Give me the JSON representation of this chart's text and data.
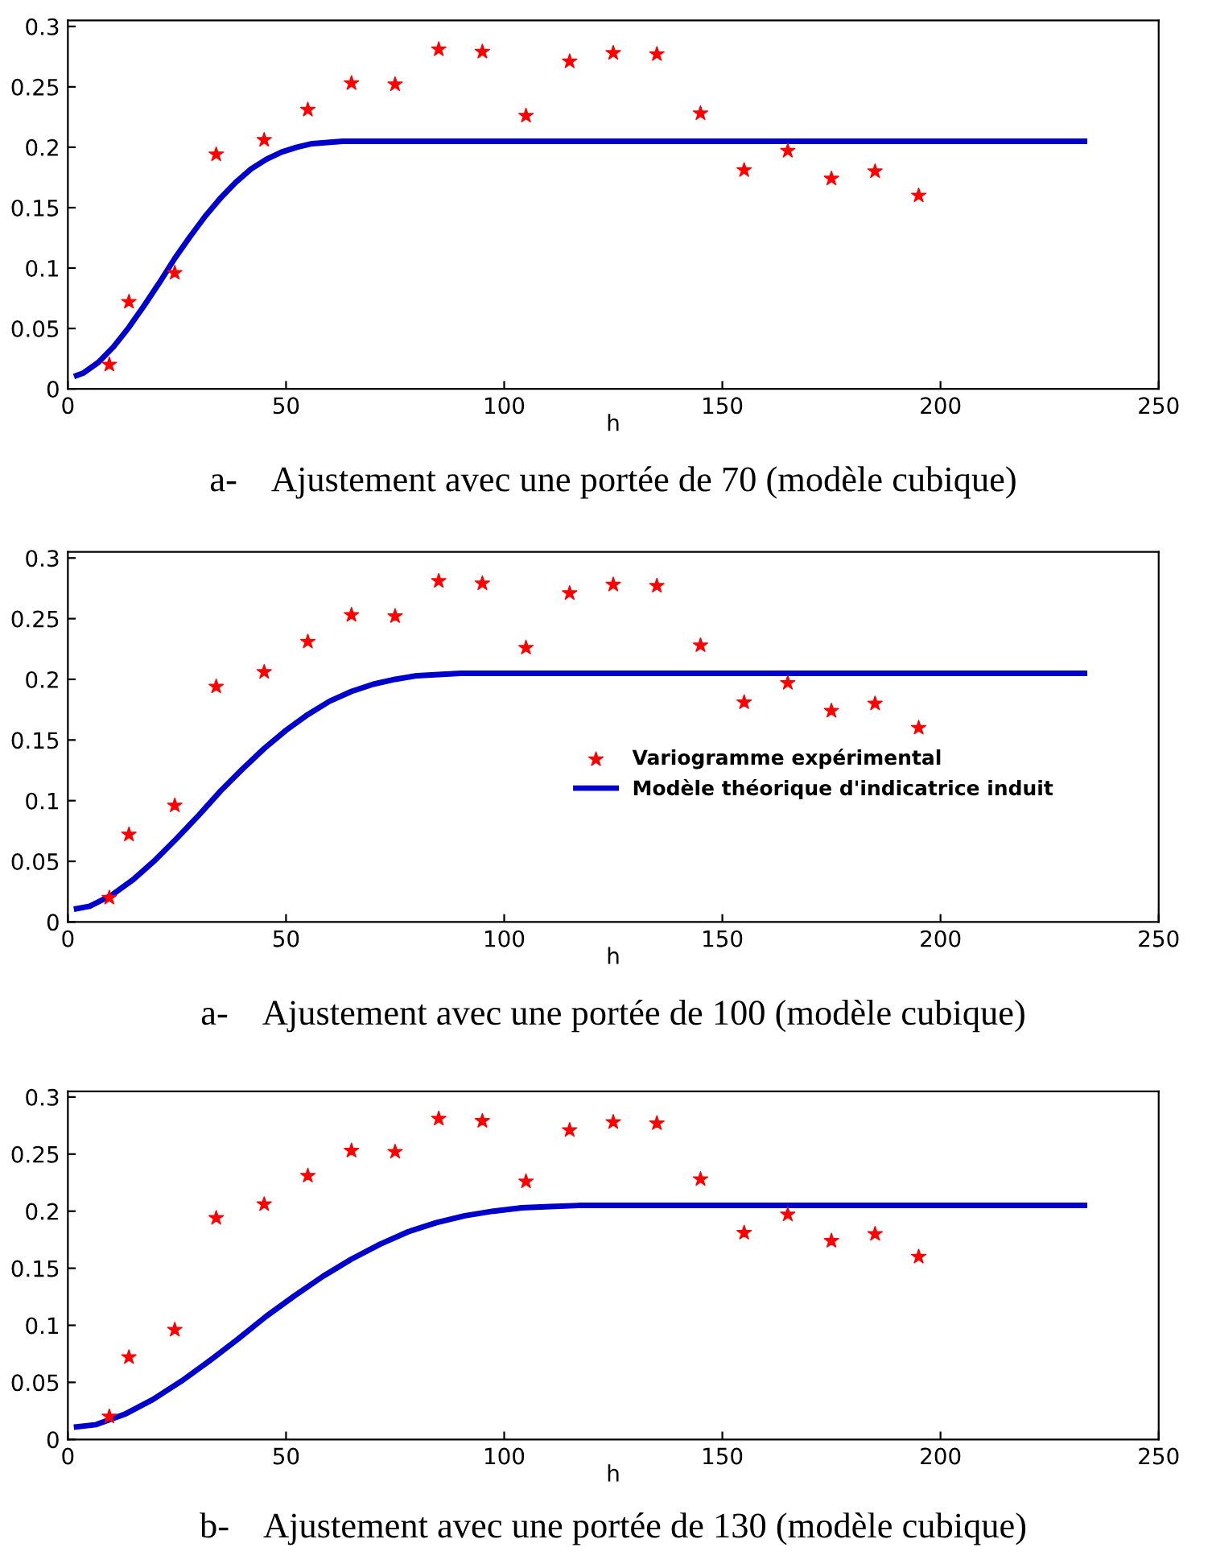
{
  "chart_data": [
    {
      "type": "scatter",
      "xlabel": "h",
      "xlim": [
        0,
        250
      ],
      "ylim": [
        0,
        0.305
      ],
      "xticks": [
        0,
        50,
        100,
        150,
        200,
        250
      ],
      "yticks": [
        0,
        0.05,
        0.1,
        0.15,
        0.2,
        0.25,
        0.3
      ],
      "grid": false,
      "legend": false,
      "annotations": [
        "a-    Ajustement avec une portée de 70 (modèle cubique)"
      ],
      "series": [
        {
          "color": "#ff0000",
          "marker": "star",
          "x": [
            9.5,
            14,
            24.5,
            34,
            45,
            55,
            65,
            75,
            85,
            95,
            105,
            115,
            125,
            135,
            145,
            155,
            165,
            175,
            185,
            195
          ],
          "values": [
            0.02,
            0.072,
            0.096,
            0.194,
            0.206,
            0.231,
            0.253,
            0.252,
            0.281,
            0.279,
            0.226,
            0.271,
            0.278,
            0.277,
            0.228,
            0.181,
            0.197,
            0.174,
            0.18,
            0.16
          ]
        },
        {
          "type": "line",
          "color": "#0000cc",
          "line_style": "solid",
          "x": [
            2,
            3.5,
            7,
            10.5,
            14,
            17.5,
            21,
            24.5,
            28,
            31.5,
            35,
            38.5,
            42,
            45.5,
            49,
            52.5,
            56,
            59.5,
            63,
            70,
            233
          ],
          "values": [
            0.011,
            0.013,
            0.022,
            0.035,
            0.051,
            0.069,
            0.088,
            0.108,
            0.126,
            0.143,
            0.158,
            0.171,
            0.182,
            0.19,
            0.196,
            0.2,
            0.203,
            0.204,
            0.205,
            0.205,
            0.205
          ]
        }
      ]
    },
    {
      "type": "scatter",
      "xlabel": "h",
      "xlim": [
        0,
        250
      ],
      "ylim": [
        0,
        0.305
      ],
      "xticks": [
        0,
        50,
        100,
        150,
        200,
        250
      ],
      "yticks": [
        0,
        0.05,
        0.1,
        0.15,
        0.2,
        0.25,
        0.3
      ],
      "grid": false,
      "legend": "right",
      "annotations": [
        "a-    Ajustement avec une portée de 100 (modèle cubique)"
      ],
      "series": [
        {
          "name": "Variogramme expérimental",
          "color": "#ff0000",
          "marker": "star",
          "x": [
            9.5,
            14,
            24.5,
            34,
            45,
            55,
            65,
            75,
            85,
            95,
            105,
            115,
            125,
            135,
            145,
            155,
            165,
            175,
            185,
            195
          ],
          "values": [
            0.02,
            0.072,
            0.096,
            0.194,
            0.206,
            0.231,
            0.253,
            0.252,
            0.281,
            0.279,
            0.226,
            0.271,
            0.278,
            0.277,
            0.228,
            0.181,
            0.197,
            0.174,
            0.18,
            0.16
          ]
        },
        {
          "type": "line",
          "name": "Modèle théorique d'indicatrice induit",
          "color": "#0000cc",
          "line_style": "solid",
          "x": [
            2,
            5,
            10,
            15,
            20,
            25,
            30,
            35,
            40,
            45,
            50,
            55,
            60,
            65,
            70,
            75,
            80,
            85,
            90,
            100,
            233
          ],
          "values": [
            0.011,
            0.013,
            0.022,
            0.035,
            0.051,
            0.069,
            0.088,
            0.108,
            0.126,
            0.143,
            0.158,
            0.171,
            0.182,
            0.19,
            0.196,
            0.2,
            0.203,
            0.204,
            0.205,
            0.205,
            0.205
          ]
        }
      ]
    },
    {
      "type": "scatter",
      "xlabel": "h",
      "xlim": [
        0,
        250
      ],
      "ylim": [
        0,
        0.305
      ],
      "xticks": [
        0,
        50,
        100,
        150,
        200,
        250
      ],
      "yticks": [
        0,
        0.05,
        0.1,
        0.15,
        0.2,
        0.25,
        0.3
      ],
      "grid": false,
      "legend": false,
      "annotations": [
        "b-    Ajustement avec une portée de 130 (modèle cubique)"
      ],
      "series": [
        {
          "color": "#ff0000",
          "marker": "star",
          "x": [
            9.5,
            14,
            24.5,
            34,
            45,
            55,
            65,
            75,
            85,
            95,
            105,
            115,
            125,
            135,
            145,
            155,
            165,
            175,
            185,
            195
          ],
          "values": [
            0.02,
            0.072,
            0.096,
            0.194,
            0.206,
            0.231,
            0.253,
            0.252,
            0.281,
            0.279,
            0.226,
            0.271,
            0.278,
            0.277,
            0.228,
            0.181,
            0.197,
            0.174,
            0.18,
            0.16
          ]
        },
        {
          "type": "line",
          "color": "#0000cc",
          "line_style": "solid",
          "x": [
            2,
            6.5,
            13,
            19.5,
            26,
            32.5,
            39,
            45.5,
            52,
            58.5,
            65,
            71.5,
            78,
            84.5,
            91,
            97.5,
            104,
            110.5,
            117,
            130,
            233
          ],
          "values": [
            0.011,
            0.013,
            0.022,
            0.035,
            0.051,
            0.069,
            0.088,
            0.108,
            0.126,
            0.143,
            0.158,
            0.171,
            0.182,
            0.19,
            0.196,
            0.2,
            0.203,
            0.204,
            0.205,
            0.205,
            0.205
          ]
        }
      ]
    }
  ]
}
